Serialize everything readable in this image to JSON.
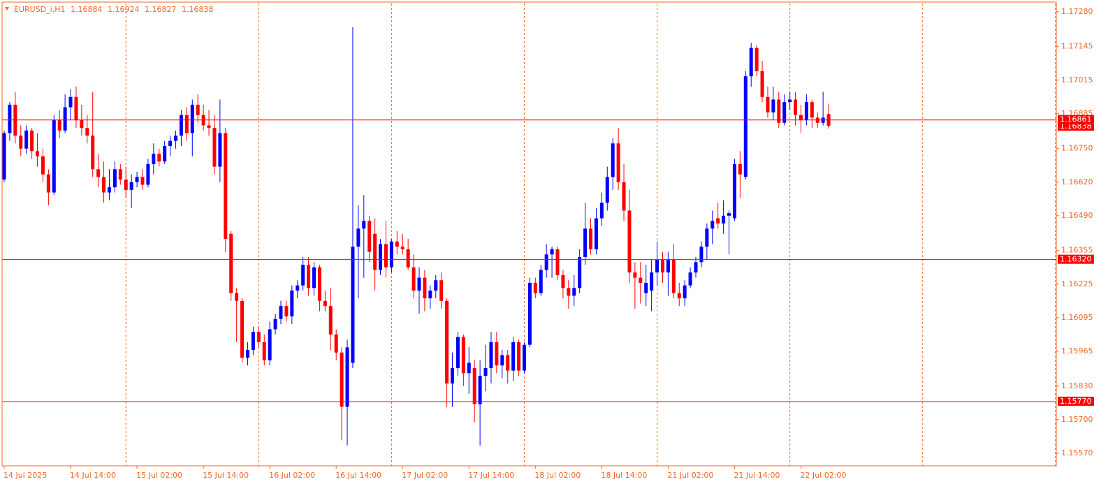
{
  "chart_data": {
    "type": "candlestick",
    "symbol": "EURUSD_i,H1",
    "up_color": "#0000ff",
    "down_color": "#ff0000",
    "frame_color": "#f26522",
    "level_color": "#ff0000",
    "grid": true,
    "ylim": [
      1.15521,
      1.17312
    ],
    "yticks": [
      {
        "value": 1.1557,
        "label": "1.15570"
      },
      {
        "value": 1.157,
        "label": "1.15700"
      },
      {
        "value": 1.1583,
        "label": "1.15830"
      },
      1.15965,
      1.16095,
      1.16225,
      1.16355,
      {
        "value": 1.1649,
        "label": "1.16490"
      },
      {
        "value": 1.1662,
        "label": "1.16620"
      },
      {
        "value": 1.1675,
        "label": "1.16750"
      },
      1.16885,
      1.17015,
      1.17145,
      {
        "value": 1.1728,
        "label": "1.17280"
      }
    ],
    "hlines": [
      1.16861,
      {
        "value": 1.1632,
        "label": "1.16320"
      },
      {
        "value": 1.1577,
        "label": "1.15770"
      }
    ],
    "x": [
      "14 Jul 2025",
      null,
      null,
      null,
      null,
      null,
      null,
      null,
      null,
      null,
      null,
      null,
      "14 Jul 14:00",
      null,
      null,
      null,
      null,
      null,
      null,
      null,
      null,
      null,
      null,
      null,
      "15 Jul 02:00",
      null,
      null,
      null,
      null,
      null,
      null,
      null,
      null,
      null,
      null,
      null,
      "15 Jul 14:00",
      null,
      null,
      null,
      null,
      null,
      null,
      null,
      null,
      null,
      null,
      null,
      "16 Jul 02:00",
      null,
      null,
      null,
      null,
      null,
      null,
      null,
      null,
      null,
      null,
      null,
      "16 Jul 14:00",
      null,
      null,
      null,
      null,
      null,
      null,
      null,
      null,
      null,
      null,
      null,
      "17 Jul 02:00",
      null,
      null,
      null,
      null,
      null,
      null,
      null,
      null,
      null,
      null,
      null,
      "17 Jul 14:00",
      null,
      null,
      null,
      null,
      null,
      null,
      null,
      null,
      null,
      null,
      null,
      "18 Jul 02:00",
      null,
      null,
      null,
      null,
      null,
      null,
      null,
      null,
      null,
      null,
      null,
      "18 Jul 14:00",
      null,
      null,
      null,
      null,
      null,
      null,
      null,
      null,
      null,
      null,
      null,
      "21 Jul 02:00",
      null,
      null,
      null,
      null,
      null,
      null,
      null,
      null,
      null,
      null,
      null,
      "21 Jul 14:00",
      null,
      null,
      null,
      null,
      null,
      null,
      null,
      null,
      null,
      null,
      null,
      "22 Jul 02:00",
      null,
      null,
      null,
      null,
      null
    ],
    "open": [
      1.1663,
      1.1681,
      1.1692,
      1.168,
      1.1675,
      1.1682,
      1.1674,
      1.1672,
      1.1665,
      1.1658,
      1.1686,
      1.1682,
      1.1691,
      1.1695,
      1.1686,
      1.1683,
      1.168,
      1.1667,
      1.1664,
      1.1658,
      1.166,
      1.1667,
      1.1663,
      1.1659,
      1.1662,
      1.1664,
      1.1661,
      1.1669,
      1.1673,
      1.167,
      1.1676,
      1.1678,
      1.168,
      1.1688,
      1.1681,
      1.1692,
      1.1688,
      1.1684,
      1.1683,
      1.1668,
      1.1681,
      1.1642,
      1.1619,
      1.1616,
      1.1594,
      1.1597,
      1.1604,
      1.16,
      1.1593,
      1.1605,
      1.1609,
      1.1614,
      1.161,
      1.162,
      1.1622,
      1.163,
      1.1621,
      1.1629,
      1.1616,
      1.1614,
      1.1603,
      1.1596,
      1.1575,
      1.1592,
      1.1637,
      1.1644,
      1.1647,
      1.1642,
      1.1628,
      1.1638,
      1.1629,
      1.1639,
      1.1637,
      1.1636,
      1.1629,
      1.162,
      1.1625,
      1.1617,
      1.162,
      1.1624,
      1.1616,
      1.1584,
      1.159,
      1.1602,
      1.1588,
      1.159,
      1.1576,
      1.1587,
      1.159,
      1.16,
      1.1591,
      1.1595,
      1.1589,
      1.16,
      1.1589,
      1.1599,
      1.1623,
      1.1619,
      1.1628,
      1.1634,
      1.1636,
      1.1626,
      1.1621,
      1.1618,
      1.1621,
      1.1633,
      1.1644,
      1.1636,
      1.1648,
      1.1654,
      1.1664,
      1.1677,
      1.1662,
      1.1651,
      1.1627,
      1.1625,
      1.1619,
      1.162,
      1.1627,
      1.1632,
      1.1627,
      1.1632,
      1.1619,
      1.1617,
      1.1622,
      1.1627,
      1.1631,
      1.1637,
      1.1644,
      1.1648,
      1.1646,
      1.1649,
      1.1648,
      1.1669,
      1.1664,
      1.1703,
      1.1714,
      1.1705,
      1.1695,
      1.1689,
      1.1694,
      1.1685,
      1.1693,
      1.1694,
      1.1688,
      1.1686,
      1.1693,
      1.1687,
      1.1685,
      1.16884
    ],
    "high": [
      1.1682,
      1.1693,
      1.1697,
      1.1684,
      1.1684,
      1.1683,
      1.1681,
      1.1675,
      1.1667,
      1.1688,
      1.169,
      1.1696,
      1.1698,
      1.1699,
      1.1692,
      1.1688,
      1.1697,
      1.1673,
      1.167,
      1.1667,
      1.167,
      1.1669,
      1.1668,
      1.1665,
      1.1666,
      1.1667,
      1.1671,
      1.1677,
      1.1675,
      1.1678,
      1.168,
      1.1682,
      1.169,
      1.1691,
      1.1694,
      1.1696,
      1.1692,
      1.169,
      1.1688,
      1.1694,
      1.1683,
      1.1643,
      1.1621,
      1.1617,
      1.16,
      1.1606,
      1.1606,
      1.1603,
      1.1608,
      1.1611,
      1.1616,
      1.1616,
      1.1622,
      1.1624,
      1.1633,
      1.1633,
      1.1631,
      1.163,
      1.162,
      1.1621,
      1.1605,
      1.1598,
      1.1601,
      1.1722,
      1.1653,
      1.1657,
      1.1649,
      1.1648,
      1.164,
      1.1647,
      1.164,
      1.1643,
      1.1642,
      1.164,
      1.1634,
      1.1629,
      1.1628,
      1.1622,
      1.1626,
      1.1627,
      1.1617,
      1.1596,
      1.1604,
      1.1603,
      1.1598,
      1.1593,
      1.1593,
      1.1599,
      1.1604,
      1.1604,
      1.1597,
      1.1597,
      1.1602,
      1.1601,
      1.16,
      1.1625,
      1.1625,
      1.163,
      1.1638,
      1.1637,
      1.1637,
      1.1628,
      1.1624,
      1.1626,
      1.1636,
      1.1654,
      1.1648,
      1.1652,
      1.1658,
      1.1668,
      1.1679,
      1.1683,
      1.1669,
      1.1659,
      1.1631,
      1.1631,
      1.163,
      1.1632,
      1.1639,
      1.1635,
      1.1635,
      1.1638,
      1.1623,
      1.1624,
      1.1629,
      1.1633,
      1.1639,
      1.1646,
      1.1651,
      1.1654,
      1.1655,
      1.1651,
      1.1671,
      1.1674,
      1.1705,
      1.1716,
      1.1715,
      1.1709,
      1.1699,
      1.1699,
      1.1697,
      1.1696,
      1.1697,
      1.1697,
      1.1692,
      1.1696,
      1.1694,
      1.1689,
      1.1697,
      1.16924
    ],
    "low": [
      1.1662,
      1.1678,
      1.1677,
      1.1672,
      1.1673,
      1.1671,
      1.1668,
      1.1662,
      1.1653,
      1.1657,
      1.1679,
      1.1681,
      1.1686,
      1.1683,
      1.168,
      1.1677,
      1.1664,
      1.166,
      1.1654,
      1.1655,
      1.1658,
      1.1661,
      1.1656,
      1.1652,
      1.166,
      1.1659,
      1.166,
      1.1665,
      1.1668,
      1.1669,
      1.1672,
      1.1675,
      1.1676,
      1.1678,
      1.1672,
      1.1685,
      1.1682,
      1.168,
      1.1665,
      1.1662,
      1.1635,
      1.1616,
      1.16,
      1.1592,
      1.1591,
      1.1595,
      1.1598,
      1.1591,
      1.1591,
      1.1603,
      1.1607,
      1.1608,
      1.1607,
      1.1617,
      1.162,
      1.1618,
      1.1618,
      1.1612,
      1.1612,
      1.1597,
      1.1593,
      1.1562,
      1.156,
      1.159,
      1.1617,
      1.1625,
      1.1631,
      1.162,
      1.1626,
      1.1625,
      1.1627,
      1.1634,
      1.1634,
      1.1628,
      1.1617,
      1.1611,
      1.1612,
      1.1613,
      1.1617,
      1.1613,
      1.1575,
      1.1575,
      1.1587,
      1.1583,
      1.158,
      1.1569,
      1.156,
      1.1581,
      1.1584,
      1.1588,
      1.1586,
      1.1584,
      1.1585,
      1.1587,
      1.1588,
      1.1598,
      1.1617,
      1.1618,
      1.1625,
      1.1625,
      1.1624,
      1.1617,
      1.1613,
      1.1614,
      1.1619,
      1.163,
      1.1634,
      1.1634,
      1.1645,
      1.1651,
      1.1659,
      1.1659,
      1.1647,
      1.1623,
      1.1613,
      1.1615,
      1.1614,
      1.1612,
      1.1622,
      1.1623,
      1.1618,
      1.1617,
      1.1614,
      1.1614,
      1.1621,
      1.1625,
      1.1629,
      1.1632,
      1.1638,
      1.1644,
      1.1642,
      1.1634,
      1.1647,
      1.1656,
      1.1663,
      1.1699,
      1.1703,
      1.1693,
      1.1687,
      1.1686,
      1.1683,
      1.1684,
      1.169,
      1.1684,
      1.1681,
      1.1684,
      1.1683,
      1.1683,
      1.1684,
      1.16827
    ],
    "close": [
      1.1681,
      1.1692,
      1.168,
      1.1675,
      1.1682,
      1.1674,
      1.1672,
      1.1665,
      1.1658,
      1.1686,
      1.1682,
      1.1691,
      1.1695,
      1.1686,
      1.1683,
      1.168,
      1.1667,
      1.1664,
      1.1658,
      1.166,
      1.1667,
      1.1663,
      1.1659,
      1.1662,
      1.1664,
      1.1661,
      1.1669,
      1.1673,
      1.167,
      1.1676,
      1.1678,
      1.168,
      1.1688,
      1.1681,
      1.1692,
      1.1688,
      1.1684,
      1.1683,
      1.1668,
      1.1681,
      1.164,
      1.1619,
      1.1616,
      1.1594,
      1.1597,
      1.1604,
      1.16,
      1.1593,
      1.1605,
      1.1609,
      1.1614,
      1.161,
      1.162,
      1.1622,
      1.163,
      1.1621,
      1.1629,
      1.1616,
      1.1614,
      1.1603,
      1.1596,
      1.1575,
      1.1598,
      1.1637,
      1.1644,
      1.1647,
      1.1635,
      1.1628,
      1.1638,
      1.1629,
      1.1639,
      1.1637,
      1.1636,
      1.1629,
      1.162,
      1.1625,
      1.1617,
      1.162,
      1.1624,
      1.1616,
      1.1584,
      1.159,
      1.1602,
      1.1588,
      1.1592,
      1.1576,
      1.1587,
      1.159,
      1.16,
      1.1591,
      1.1595,
      1.1589,
      1.16,
      1.1589,
      1.1599,
      1.1623,
      1.1619,
      1.1628,
      1.1634,
      1.1636,
      1.1626,
      1.1621,
      1.1618,
      1.1621,
      1.1633,
      1.1644,
      1.1636,
      1.1648,
      1.1654,
      1.1664,
      1.1677,
      1.1662,
      1.1651,
      1.1627,
      1.1625,
      1.1623,
      1.1623,
      1.1627,
      1.1632,
      1.1627,
      1.1632,
      1.1619,
      1.1617,
      1.1622,
      1.1627,
      1.1631,
      1.1637,
      1.1644,
      1.1647,
      1.1646,
      1.1649,
      1.165,
      1.1669,
      1.1665,
      1.1703,
      1.1714,
      1.1705,
      1.1695,
      1.1689,
      1.1694,
      1.1685,
      1.1693,
      1.1694,
      1.1688,
      1.1686,
      1.1693,
      1.1687,
      1.1685,
      1.1687,
      1.16838
    ]
  }
}
